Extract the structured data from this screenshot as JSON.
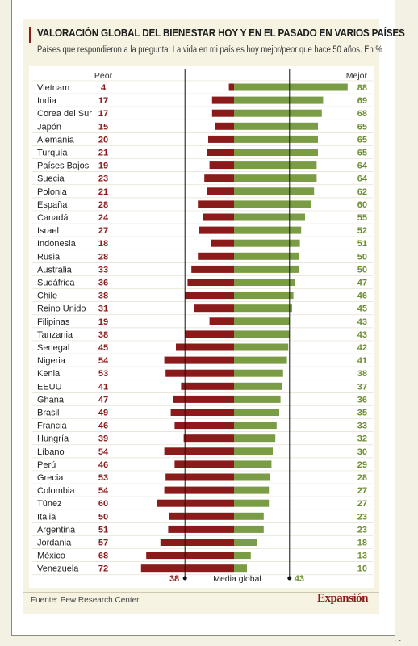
{
  "header": {
    "title": "VALORACIÓN GLOBAL DEL BIENESTAR HOY Y EN EL PASADO EN VARIOS PAÍSES",
    "subtitle": "Países que respondieron a la pregunta: La vida en mi país es hoy mejor/peor que hace 50 años. En %"
  },
  "legend": {
    "worse_label": "Peor",
    "better_label": "Mejor"
  },
  "average": {
    "label": "Media global",
    "worse": "38",
    "better": "43"
  },
  "footer": {
    "source": "Fuente: Pew Research Center",
    "brand": "Expansión"
  },
  "colors": {
    "worse": "#8b1a1a",
    "better": "#7a9c45",
    "worse_text": "#8b1a1a",
    "better_text": "#6b8e2f"
  },
  "chart_data": {
    "type": "bar",
    "orientation": "horizontal-diverging",
    "title": "VALORACIÓN GLOBAL DEL BIENESTAR HOY Y EN EL PASADO EN VARIOS PAÍSES",
    "subtitle": "Países que respondieron a la pregunta: La vida en mi país es hoy mejor/peor que hace 50 años. En %",
    "categories": [
      "Vietnam",
      "India",
      "Corea del Sur",
      "Japón",
      "Alemania",
      "Turquía",
      "Países Bajos",
      "Suecia",
      "Polonia",
      "España",
      "Canadá",
      "Israel",
      "Indonesia",
      "Rusia",
      "Australia",
      "Sudáfrica",
      "Chile",
      "Reino Unido",
      "Filipinas",
      "Tanzania",
      "Senegal",
      "Nigeria",
      "Kenia",
      "EEUU",
      "Ghana",
      "Brasil",
      "Francia",
      "Hungría",
      "Líbano",
      "Perú",
      "Grecia",
      "Colombia",
      "Túnez",
      "Italia",
      "Argentina",
      "Jordania",
      "México",
      "Venezuela"
    ],
    "series": [
      {
        "name": "Peor",
        "values": [
          4,
          17,
          17,
          15,
          20,
          21,
          19,
          23,
          21,
          28,
          24,
          27,
          18,
          28,
          33,
          36,
          38,
          31,
          19,
          38,
          45,
          54,
          53,
          41,
          47,
          49,
          46,
          39,
          54,
          46,
          53,
          54,
          60,
          50,
          51,
          57,
          68,
          72
        ]
      },
      {
        "name": "Mejor",
        "values": [
          88,
          69,
          68,
          65,
          65,
          65,
          64,
          64,
          62,
          60,
          55,
          52,
          51,
          50,
          50,
          47,
          46,
          45,
          43,
          43,
          42,
          41,
          38,
          37,
          36,
          35,
          33,
          32,
          30,
          29,
          28,
          27,
          27,
          23,
          23,
          18,
          13,
          10
        ]
      }
    ],
    "reference_lines": [
      {
        "name": "Media global",
        "series": "Peor",
        "value": 38
      },
      {
        "name": "Media global",
        "series": "Mejor",
        "value": 43
      }
    ],
    "unit": "%",
    "legend_position": "top"
  }
}
